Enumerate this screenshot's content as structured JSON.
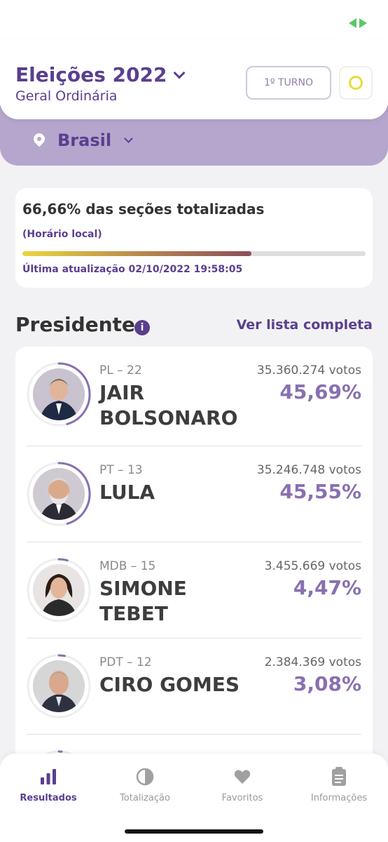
{
  "header": {
    "title": "Eleições 2022",
    "subtitle": "Geral Ordinária",
    "turn_label": "1º TURNO"
  },
  "location": {
    "name": "Brasil"
  },
  "progress": {
    "title": "66,66% das seções totalizadas",
    "note": "(Horário local)",
    "fraction": 0.6666,
    "updated": "Última atualização 02/10/2022 19:58:05"
  },
  "section": {
    "title": "Presidente",
    "see_all": "Ver lista completa"
  },
  "candidates": [
    {
      "party": "PL – 22",
      "name": "JAIR BOLSONARO",
      "votes": "35.360.274 votos",
      "percent": "45,69%",
      "share": 0.4569
    },
    {
      "party": "PT – 13",
      "name": "LULA",
      "votes": "35.246.748 votos",
      "percent": "45,55%",
      "share": 0.4555
    },
    {
      "party": "MDB – 15",
      "name": "SIMONE TEBET",
      "votes": "3.455.669 votos",
      "percent": "4,47%",
      "share": 0.0447
    },
    {
      "party": "PDT – 12",
      "name": "CIRO GOMES",
      "votes": "2.384.369 votos",
      "percent": "3,08%",
      "share": 0.0308
    }
  ],
  "nav": {
    "items": [
      {
        "label": "Resultados",
        "icon": "bar-chart-icon",
        "active": true
      },
      {
        "label": "Totalização",
        "icon": "half-circle-icon",
        "active": false
      },
      {
        "label": "Favoritos",
        "icon": "heart-icon",
        "active": false
      },
      {
        "label": "Informações",
        "icon": "clipboard-icon",
        "active": false
      }
    ]
  },
  "colors": {
    "brand": "#5a3f8f",
    "accent": "#8870b0",
    "band": "#b5a6cd"
  }
}
